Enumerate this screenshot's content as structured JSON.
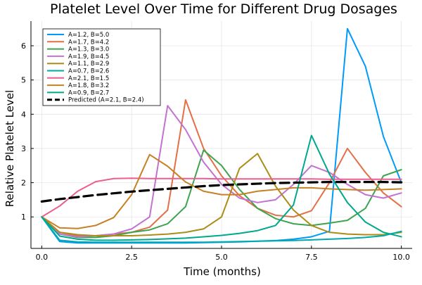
{
  "chart_data": {
    "type": "line",
    "title": "Platelet Level Over Time for Different Drug Dosages",
    "xlabel": "Time (months)",
    "ylabel": "Relative Platelet Level",
    "xlim": [
      -0.3,
      10.3
    ],
    "ylim": [
      0.08,
      6.72
    ],
    "xticks": [
      0,
      2.5,
      5,
      7.5,
      10
    ],
    "xtick_labels": [
      "0.0",
      "2.5",
      "5.0",
      "7.5",
      "10.0"
    ],
    "yticks": [
      1,
      2,
      3,
      4,
      5,
      6
    ],
    "ytick_labels": [
      "1",
      "2",
      "3",
      "4",
      "5",
      "6"
    ],
    "grid": true,
    "legend_position": "top-left",
    "x": [
      0,
      0.5,
      1,
      1.5,
      2,
      2.5,
      3,
      3.5,
      4,
      4.5,
      5,
      5.5,
      6,
      6.5,
      7,
      7.5,
      8,
      8.5,
      9,
      9.5,
      10
    ],
    "series": [
      {
        "name": "A=1.2, B=5.0",
        "color": "#009AFA",
        "style": "solid",
        "values": [
          1.0,
          0.28,
          0.24,
          0.24,
          0.24,
          0.24,
          0.24,
          0.24,
          0.24,
          0.25,
          0.26,
          0.27,
          0.29,
          0.31,
          0.35,
          0.42,
          0.58,
          6.5,
          5.4,
          3.35,
          2.0
        ]
      },
      {
        "name": "A=1.7, B=4.2",
        "color": "#E36F47",
        "style": "solid",
        "values": [
          1.0,
          0.55,
          0.45,
          0.45,
          0.5,
          0.55,
          0.7,
          1.2,
          4.42,
          3.0,
          2.2,
          1.62,
          1.25,
          1.05,
          1.0,
          1.18,
          2.0,
          3.0,
          2.3,
          1.7,
          1.3
        ]
      },
      {
        "name": "A=1.3, B=3.0",
        "color": "#3EA44E",
        "style": "solid",
        "values": [
          1.0,
          0.5,
          0.4,
          0.4,
          0.45,
          0.55,
          0.62,
          0.8,
          1.3,
          2.95,
          2.5,
          1.8,
          1.25,
          0.95,
          0.8,
          0.75,
          0.82,
          0.9,
          1.25,
          2.2,
          2.38
        ]
      },
      {
        "name": "A=1.9, B=4.5",
        "color": "#C371D2",
        "style": "solid",
        "values": [
          1.0,
          0.5,
          0.42,
          0.45,
          0.5,
          0.65,
          1.0,
          4.25,
          3.55,
          2.6,
          1.95,
          1.55,
          1.42,
          1.5,
          1.95,
          2.5,
          2.3,
          1.95,
          1.65,
          1.55,
          1.7
        ]
      },
      {
        "name": "A=1.1, B=2.9",
        "color": "#AC8D18",
        "style": "solid",
        "values": [
          1.0,
          0.55,
          0.48,
          0.45,
          0.45,
          0.45,
          0.47,
          0.5,
          0.55,
          0.65,
          1.0,
          2.42,
          2.85,
          1.9,
          1.2,
          0.75,
          0.55,
          0.5,
          0.48,
          0.48,
          0.55
        ]
      },
      {
        "name": "A=0.7, B=2.6",
        "color": "#00A9AD",
        "style": "solid",
        "values": [
          1.0,
          0.32,
          0.27,
          0.26,
          0.26,
          0.26,
          0.26,
          0.26,
          0.26,
          0.26,
          0.27,
          0.28,
          0.29,
          0.3,
          0.31,
          0.33,
          0.35,
          0.37,
          0.4,
          0.45,
          0.58
        ]
      },
      {
        "name": "A=2.1, B=1.5",
        "color": "#ED5D92",
        "style": "solid",
        "values": [
          1.0,
          1.32,
          1.75,
          2.03,
          2.12,
          2.13,
          2.12,
          2.12,
          2.12,
          2.12,
          2.11,
          2.11,
          2.11,
          2.11,
          2.11,
          2.11,
          2.1,
          2.1,
          2.1,
          2.1,
          2.1
        ]
      },
      {
        "name": "A=1.8, B=3.2",
        "color": "#C68125",
        "style": "solid",
        "values": [
          1.0,
          0.68,
          0.66,
          0.75,
          0.98,
          1.65,
          2.82,
          2.48,
          2.02,
          1.75,
          1.65,
          1.65,
          1.75,
          1.8,
          1.85,
          1.85,
          1.82,
          1.8,
          1.78,
          1.8,
          1.82
        ]
      },
      {
        "name": "A=0.9, B=2.7",
        "color": "#00A98D",
        "style": "solid",
        "values": [
          1.0,
          0.44,
          0.35,
          0.32,
          0.32,
          0.33,
          0.34,
          0.36,
          0.38,
          0.42,
          0.46,
          0.52,
          0.6,
          0.75,
          1.35,
          3.38,
          2.25,
          1.42,
          0.85,
          0.55,
          0.42
        ]
      },
      {
        "name": "Predicted (A=2.1, B=2.4)",
        "color": "#000000",
        "style": "dashed",
        "values": [
          1.45,
          1.52,
          1.58,
          1.64,
          1.69,
          1.74,
          1.78,
          1.82,
          1.86,
          1.9,
          1.93,
          1.95,
          1.97,
          1.99,
          2.0,
          2.01,
          2.02,
          2.02,
          2.02,
          2.02,
          2.01
        ]
      }
    ]
  }
}
